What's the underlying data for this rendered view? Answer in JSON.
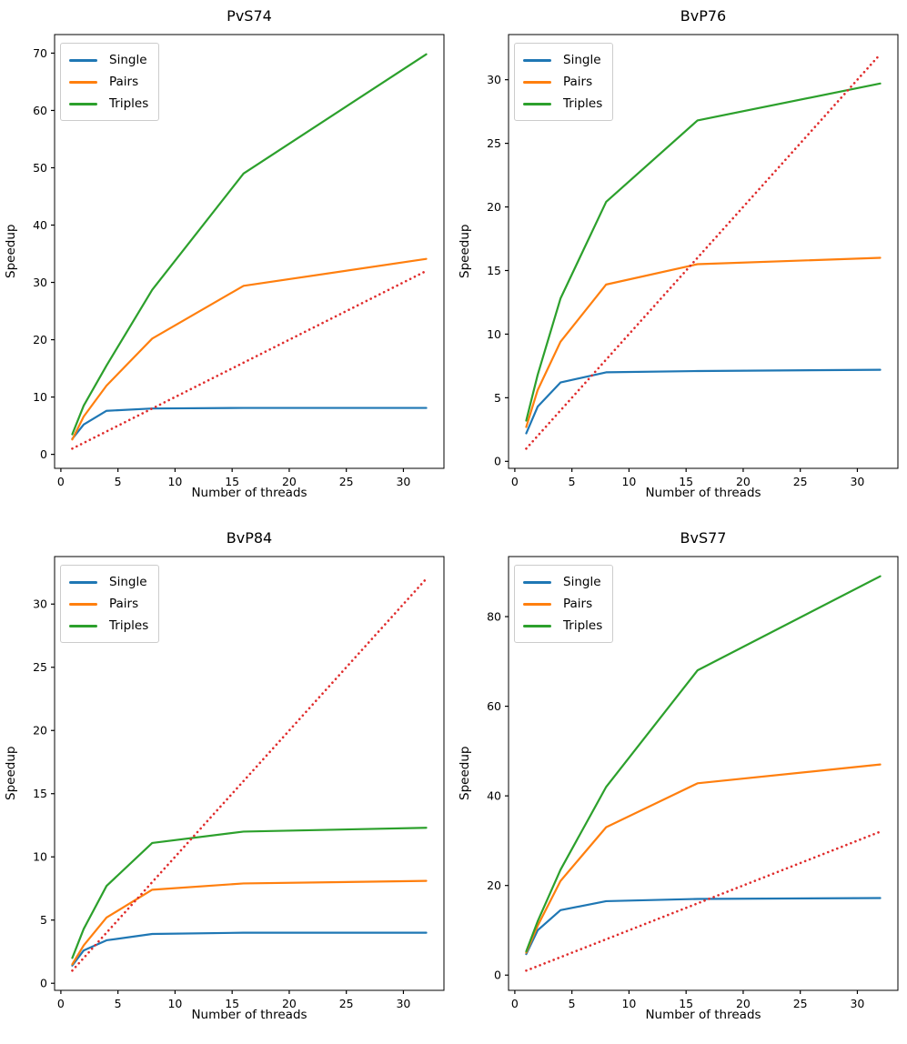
{
  "figure": {
    "ylabel": "Speedup",
    "xlabel": "Number of threads",
    "colors": {
      "single": "#1f77b4",
      "pairs": "#ff7f0e",
      "triples": "#2ca02c",
      "ideal": "#e02c2c",
      "spine": "#000000",
      "legend_border": "#cccccc"
    }
  },
  "chart_data": [
    {
      "type": "line",
      "title": "PvS74",
      "xlabel": "Number of threads",
      "ylabel": "Speedup",
      "x": [
        1,
        2,
        4,
        8,
        16,
        32
      ],
      "series": [
        {
          "name": "Single",
          "color": "#1f77b4",
          "x": [
            1,
            2,
            4,
            8,
            16,
            32
          ],
          "y": [
            2.7,
            5.2,
            7.6,
            8.0,
            8.1,
            8.1
          ]
        },
        {
          "name": "Pairs",
          "color": "#ff7f0e",
          "x": [
            1,
            2,
            4,
            8,
            16,
            32
          ],
          "y": [
            2.6,
            6.6,
            12.0,
            20.2,
            29.4,
            34.1
          ]
        },
        {
          "name": "Triples",
          "color": "#2ca02c",
          "x": [
            1,
            2,
            4,
            8,
            16,
            32
          ],
          "y": [
            3.5,
            8.5,
            15.5,
            28.7,
            49.0,
            69.8
          ]
        },
        {
          "name": "Ideal linear speedup",
          "color": "#e02c2c",
          "dash": "dot",
          "in_legend": false,
          "x": [
            1,
            32
          ],
          "y": [
            1,
            32
          ]
        }
      ],
      "xticks": [
        0,
        5,
        10,
        15,
        20,
        25,
        30
      ],
      "yticks": [
        0,
        10,
        20,
        30,
        40,
        50,
        60,
        70
      ],
      "xlim": [
        -0.55,
        33.55
      ],
      "ylim": [
        -2.44,
        73.24
      ],
      "grid": false,
      "legend": [
        "Single",
        "Pairs",
        "Triples"
      ],
      "legend_position": "upper left"
    },
    {
      "type": "line",
      "title": "BvP76",
      "xlabel": "Number of threads",
      "ylabel": "Speedup",
      "x": [
        1,
        2,
        4,
        8,
        16,
        32
      ],
      "series": [
        {
          "name": "Single",
          "color": "#1f77b4",
          "x": [
            1,
            2,
            4,
            8,
            16,
            32
          ],
          "y": [
            2.2,
            4.3,
            6.2,
            7.0,
            7.1,
            7.2
          ]
        },
        {
          "name": "Pairs",
          "color": "#ff7f0e",
          "x": [
            1,
            2,
            4,
            8,
            16,
            32
          ],
          "y": [
            2.7,
            5.6,
            9.4,
            13.9,
            15.5,
            16.0
          ]
        },
        {
          "name": "Triples",
          "color": "#2ca02c",
          "x": [
            1,
            2,
            4,
            8,
            16,
            32
          ],
          "y": [
            3.2,
            6.8,
            12.8,
            20.4,
            26.8,
            29.7
          ]
        },
        {
          "name": "Ideal linear speedup",
          "color": "#e02c2c",
          "dash": "dot",
          "in_legend": false,
          "x": [
            1,
            32
          ],
          "y": [
            1,
            32
          ]
        }
      ],
      "xticks": [
        0,
        5,
        10,
        15,
        20,
        25,
        30
      ],
      "yticks": [
        0,
        5,
        10,
        15,
        20,
        25,
        30
      ],
      "xlim": [
        -0.55,
        33.55
      ],
      "ylim": [
        -0.55,
        33.55
      ],
      "grid": false,
      "legend": [
        "Single",
        "Pairs",
        "Triples"
      ],
      "legend_position": "upper left"
    },
    {
      "type": "line",
      "title": "BvP84",
      "xlabel": "Number of threads",
      "ylabel": "Speedup",
      "x": [
        1,
        2,
        4,
        8,
        16,
        32
      ],
      "series": [
        {
          "name": "Single",
          "color": "#1f77b4",
          "x": [
            1,
            2,
            4,
            8,
            16,
            32
          ],
          "y": [
            1.4,
            2.6,
            3.4,
            3.9,
            4.0,
            4.0
          ]
        },
        {
          "name": "Pairs",
          "color": "#ff7f0e",
          "x": [
            1,
            2,
            4,
            8,
            16,
            32
          ],
          "y": [
            1.5,
            3.0,
            5.2,
            7.4,
            7.9,
            8.1
          ]
        },
        {
          "name": "Triples",
          "color": "#2ca02c",
          "x": [
            1,
            2,
            4,
            8,
            16,
            32
          ],
          "y": [
            2.0,
            4.3,
            7.7,
            11.1,
            12.0,
            12.3
          ]
        },
        {
          "name": "Ideal linear speedup",
          "color": "#e02c2c",
          "dash": "dot",
          "in_legend": false,
          "x": [
            1,
            32
          ],
          "y": [
            1,
            32
          ]
        }
      ],
      "xticks": [
        0,
        5,
        10,
        15,
        20,
        25,
        30
      ],
      "yticks": [
        0,
        5,
        10,
        15,
        20,
        25,
        30
      ],
      "xlim": [
        -0.55,
        33.55
      ],
      "ylim": [
        -0.56,
        33.76
      ],
      "grid": false,
      "legend": [
        "Single",
        "Pairs",
        "Triples"
      ],
      "legend_position": "upper left"
    },
    {
      "type": "line",
      "title": "BvS77",
      "xlabel": "Number of threads",
      "ylabel": "Speedup",
      "x": [
        1,
        2,
        4,
        8,
        16,
        32
      ],
      "series": [
        {
          "name": "Single",
          "color": "#1f77b4",
          "x": [
            1,
            2,
            4,
            8,
            16,
            32
          ],
          "y": [
            4.7,
            10.0,
            14.5,
            16.5,
            17.0,
            17.2
          ]
        },
        {
          "name": "Pairs",
          "color": "#ff7f0e",
          "x": [
            1,
            2,
            4,
            8,
            16,
            32
          ],
          "y": [
            5.0,
            11.0,
            21.0,
            33.0,
            42.8,
            47.0
          ]
        },
        {
          "name": "Triples",
          "color": "#2ca02c",
          "x": [
            1,
            2,
            4,
            8,
            16,
            32
          ],
          "y": [
            5.3,
            12.0,
            23.5,
            42.0,
            68.0,
            89.0
          ]
        },
        {
          "name": "Ideal linear speedup",
          "color": "#e02c2c",
          "dash": "dot",
          "in_legend": false,
          "x": [
            1,
            32
          ],
          "y": [
            1,
            32
          ]
        }
      ],
      "xticks": [
        0,
        5,
        10,
        15,
        20,
        25,
        30
      ],
      "yticks": [
        0,
        20,
        40,
        60,
        80
      ],
      "xlim": [
        -0.55,
        33.55
      ],
      "ylim": [
        -3.4,
        93.4
      ],
      "grid": false,
      "legend": [
        "Single",
        "Pairs",
        "Triples"
      ],
      "legend_position": "upper left"
    }
  ]
}
